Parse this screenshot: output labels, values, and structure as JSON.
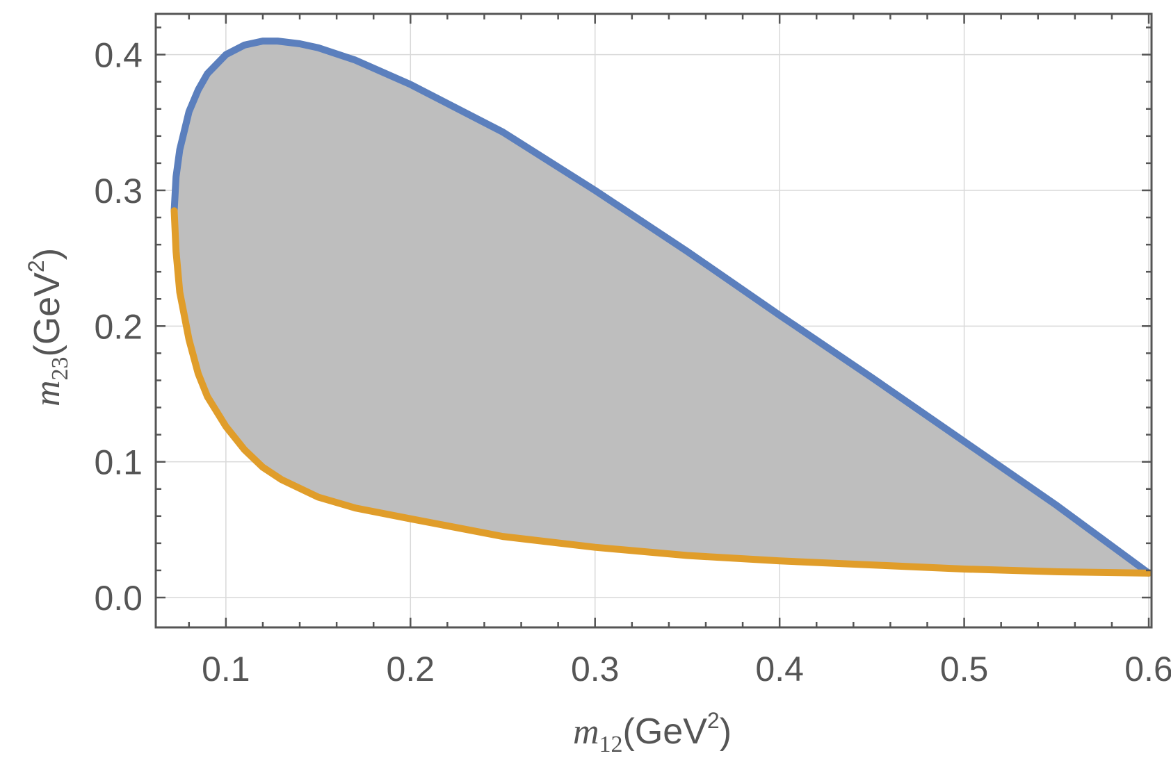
{
  "chart_data": {
    "type": "area",
    "xlabel": {
      "var": "m",
      "sub": "12",
      "unit": "(GeV",
      "sup": "2",
      "close": ")"
    },
    "ylabel": {
      "var": "m",
      "sub": "23",
      "unit": "(GeV",
      "sup": "2",
      "close": ")"
    },
    "xlim": [
      0.062,
      0.6015
    ],
    "ylim": [
      -0.022,
      0.43
    ],
    "xticks": [
      0.1,
      0.2,
      0.3,
      0.4,
      0.5,
      0.6
    ],
    "yticks": [
      0.0,
      0.1,
      0.2,
      0.3,
      0.4
    ],
    "xtick_labels": [
      "0.1",
      "0.2",
      "0.3",
      "0.4",
      "0.5",
      "0.6"
    ],
    "ytick_labels": [
      "0.0",
      "0.1",
      "0.2",
      "0.3",
      "0.4"
    ],
    "grid": true,
    "fill_color": "#bebebe",
    "series": [
      {
        "color": "#5b7fbd",
        "x": [
          0.072,
          0.073,
          0.075,
          0.08,
          0.085,
          0.09,
          0.1,
          0.11,
          0.12,
          0.128,
          0.14,
          0.15,
          0.17,
          0.2,
          0.25,
          0.3,
          0.35,
          0.4,
          0.45,
          0.5,
          0.55,
          0.6
        ],
        "y": [
          0.285,
          0.31,
          0.33,
          0.358,
          0.374,
          0.386,
          0.4,
          0.407,
          0.41,
          0.41,
          0.408,
          0.405,
          0.396,
          0.378,
          0.343,
          0.3,
          0.255,
          0.208,
          0.162,
          0.115,
          0.068,
          0.018
        ]
      },
      {
        "color": "#e09d2a",
        "x": [
          0.072,
          0.073,
          0.075,
          0.08,
          0.085,
          0.09,
          0.1,
          0.11,
          0.12,
          0.13,
          0.15,
          0.17,
          0.2,
          0.25,
          0.3,
          0.35,
          0.4,
          0.45,
          0.5,
          0.55,
          0.6
        ],
        "y": [
          0.285,
          0.255,
          0.225,
          0.19,
          0.165,
          0.148,
          0.126,
          0.109,
          0.096,
          0.087,
          0.074,
          0.066,
          0.058,
          0.045,
          0.037,
          0.031,
          0.027,
          0.024,
          0.021,
          0.019,
          0.018
        ]
      }
    ]
  }
}
